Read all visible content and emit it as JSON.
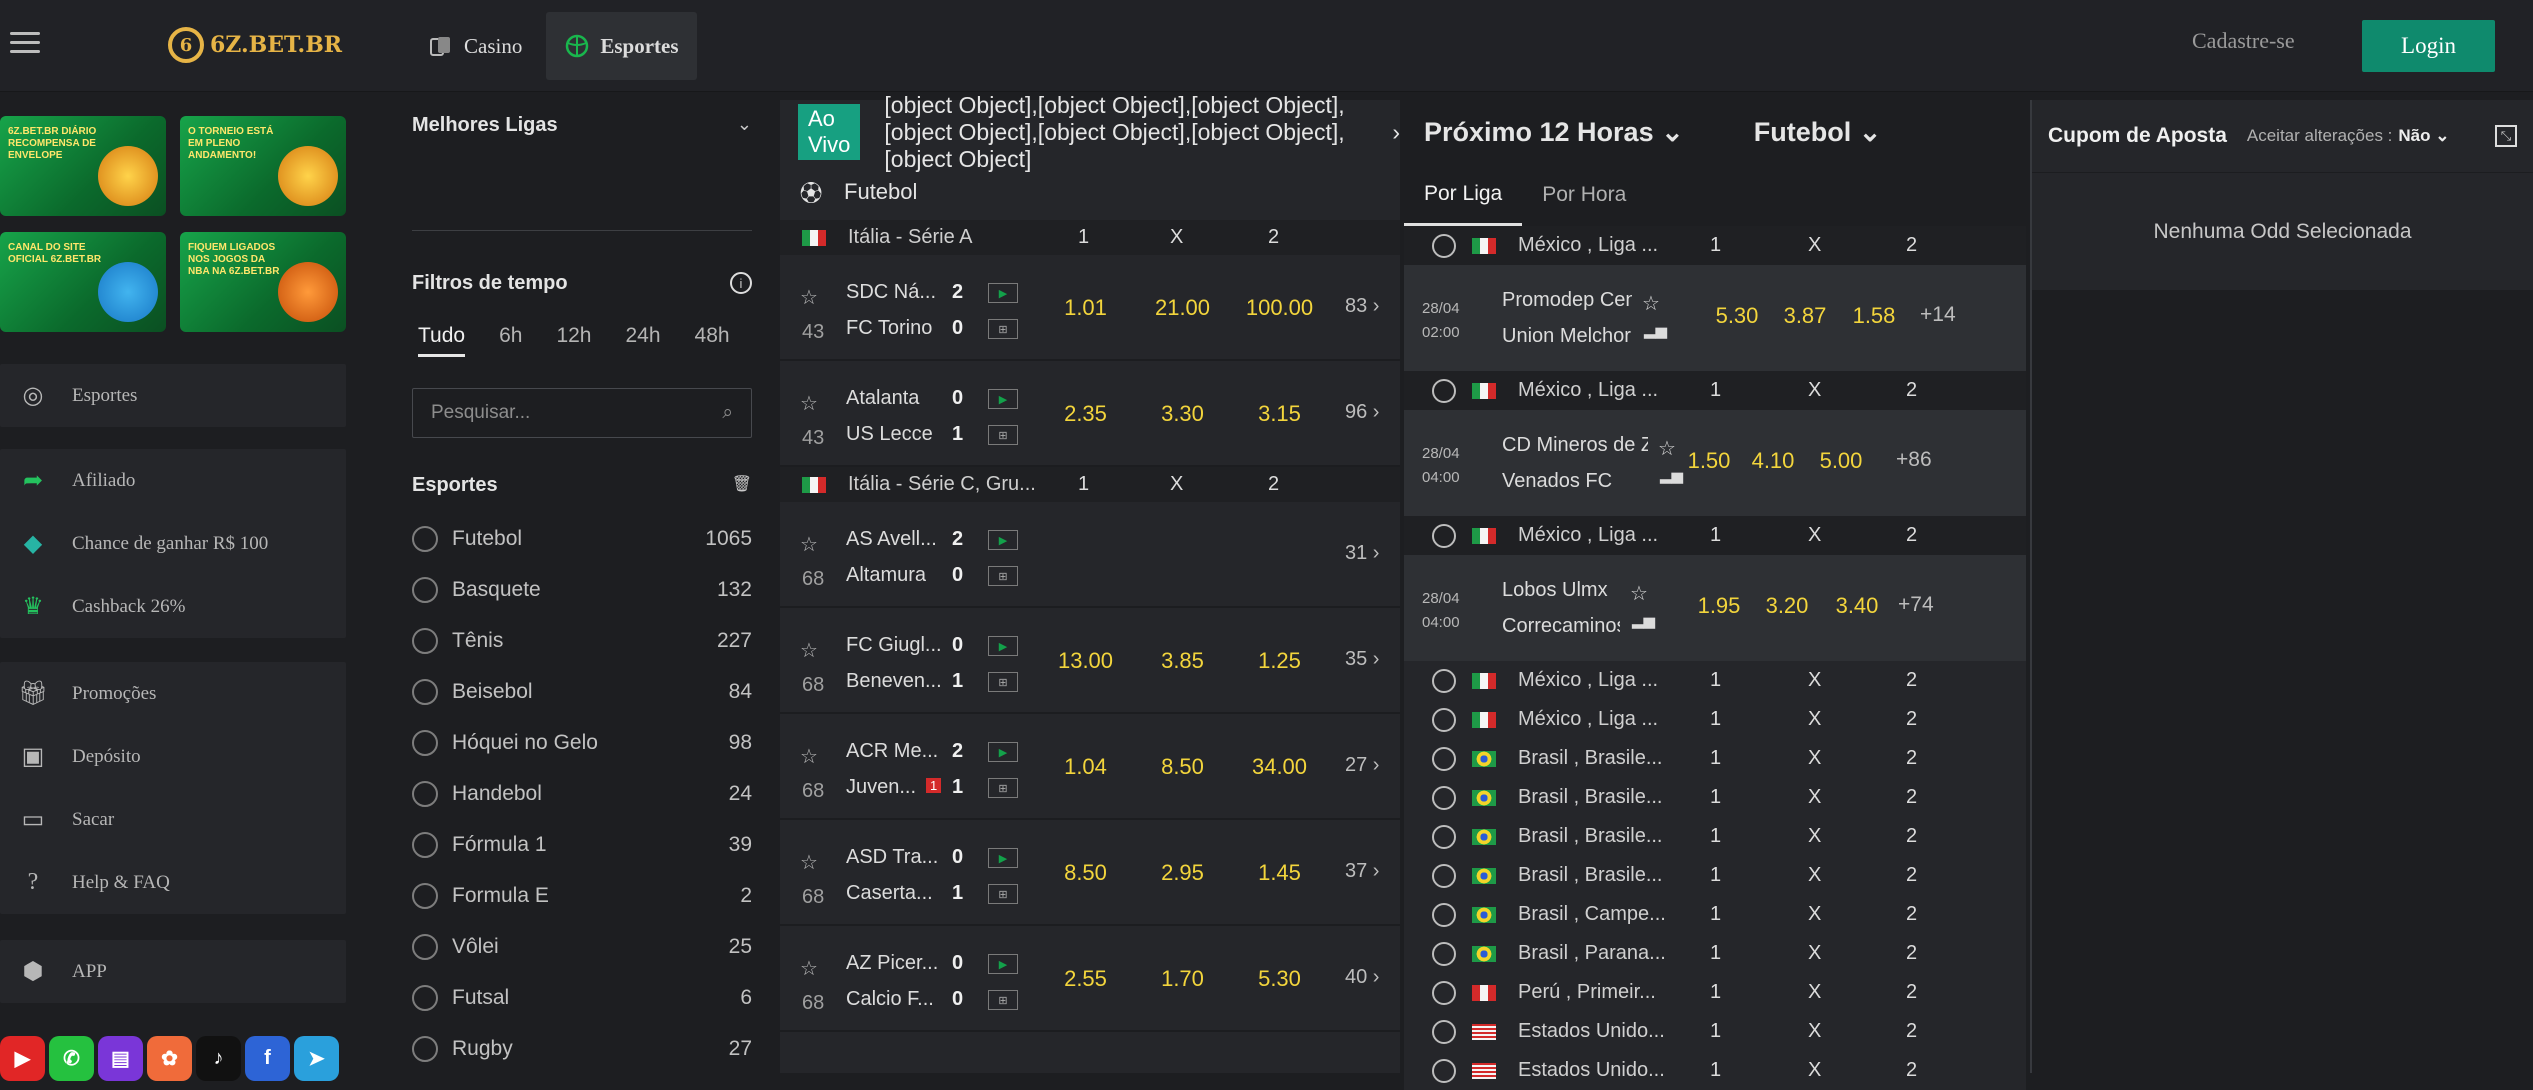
{
  "brand": {
    "logo": "6Z.BET.BR"
  },
  "topnav": {
    "casino": "Casino",
    "sports": "Esportes",
    "register": "Cadastre-se",
    "login": "Login"
  },
  "banners": [
    {
      "text": "6Z.BET.BR DIÁRIO RECOMPENSA DE ENVELOPE"
    },
    {
      "text": "O TORNEIO ESTÁ EM PLENO ANDAMENTO!"
    },
    {
      "text": "CANAL DO SITE OFICIAL 6Z.BET.BR"
    },
    {
      "text": "FIQUEM LIGADOS NOS JOGOS DA NBA NA 6Z.BET.BR"
    }
  ],
  "sidebar": {
    "esportes": "Esportes",
    "afiliado": "Afiliado",
    "chance": "Chance de ganhar R$ 100",
    "cashback": "Cashback 26%",
    "promocoes": "Promoções",
    "deposito": "Depósito",
    "sacar": "Sacar",
    "help": "Help & FAQ",
    "app": "APP"
  },
  "filters": {
    "best_leagues": "Melhores Ligas",
    "time_filter": "Filtros de tempo",
    "times": [
      "Tudo",
      "6h",
      "12h",
      "24h",
      "48h"
    ],
    "search_placeholder": "Pesquisar...",
    "sports_title": "Esportes",
    "sports": [
      {
        "name": "Futebol",
        "count": "1065"
      },
      {
        "name": "Basquete",
        "count": "132"
      },
      {
        "name": "Tênis",
        "count": "227"
      },
      {
        "name": "Beisebol",
        "count": "84"
      },
      {
        "name": "Hóquei no Gelo",
        "count": "98"
      },
      {
        "name": "Handebol",
        "count": "24"
      },
      {
        "name": "Fórmula 1",
        "count": "39"
      },
      {
        "name": "Formula E",
        "count": "2"
      },
      {
        "name": "Vôlei",
        "count": "25"
      },
      {
        "name": "Futsal",
        "count": "6"
      },
      {
        "name": "Rugby",
        "count": "27"
      }
    ]
  },
  "live": {
    "badge": "Ao Vivo",
    "events": [
      {
        "home": "SDC Ná...",
        "away": "FC Torino",
        "sh": "2",
        "sa": "0",
        "min": "43",
        "o1": "1.01",
        "ox": "21.00",
        "o2": "100.00",
        "more": "83 ›"
      },
      {
        "home": "Atalanta",
        "away": "US Lecce",
        "sh": "0",
        "sa": "1",
        "min": "43",
        "o1": "2.35",
        "ox": "3.30",
        "o2": "3.15",
        "more": "96 ›"
      },
      {
        "home": "AS Avell...",
        "away": "Altamura",
        "sh": "2",
        "sa": "0",
        "min": "68",
        "o1": "",
        "ox": "",
        "o2": "",
        "more": "31 ›"
      },
      {
        "home": "FC Giugl...",
        "away": "Beneven...",
        "sh": "0",
        "sa": "1",
        "min": "68",
        "o1": "13.00",
        "ox": "3.85",
        "o2": "1.25",
        "more": "35 ›"
      },
      {
        "home": "ACR Me...",
        "away": "Juven...",
        "sh": "2",
        "sa": "1",
        "min": "68",
        "o1": "1.04",
        "ox": "8.50",
        "o2": "34.00",
        "more": "27 ›",
        "card": "1"
      },
      {
        "home": "ASD Tra...",
        "away": "Caserta...",
        "sh": "0",
        "sa": "1",
        "min": "68",
        "o1": "8.50",
        "ox": "2.95",
        "o2": "1.45",
        "more": "37 ›"
      },
      {
        "home": "AZ Picer...",
        "away": "Calcio F...",
        "sh": "0",
        "sa": "0",
        "min": "68",
        "o1": "2.55",
        "ox": "1.70",
        "o2": "5.30",
        "more": "40 ›"
      }
    ],
    "sport": "Futebol",
    "leagues": [
      {
        "name": "Itália - Série A",
        "c1": "1",
        "cx": "X",
        "c2": "2"
      },
      {
        "name": "Itália - Série C, Gru...",
        "c1": "1",
        "cx": "X",
        "c2": "2"
      }
    ]
  },
  "next": {
    "title": "Próximo 12 Horas",
    "sport": "Futebol",
    "tab_league": "Por Liga",
    "tab_hour": "Por Hora",
    "mx": "México ,  Liga ...",
    "events": [
      {
        "date": "28/04",
        "time": "02:00",
        "home": "Promodep Centr...",
        "away": "Union Melchor O...",
        "o1": "5.30",
        "ox": "3.87",
        "o2": "1.58",
        "more": "+14"
      },
      {
        "date": "28/04",
        "time": "04:00",
        "home": "CD Mineros de Z...",
        "away": "Venados FC",
        "o1": "1.50",
        "ox": "4.10",
        "o2": "5.00",
        "more": "+86"
      },
      {
        "date": "28/04",
        "time": "04:00",
        "home": "Lobos Ulmx",
        "away": "Correcaminos ...",
        "o1": "1.95",
        "ox": "3.20",
        "o2": "3.40",
        "more": "+74"
      }
    ],
    "rows": [
      {
        "name": "México ,  Liga ...",
        "flag": "mx"
      },
      {
        "name": "México ,  Liga ...",
        "flag": "mx"
      },
      {
        "name": "Brasil ,  Brasile...",
        "flag": "br"
      },
      {
        "name": "Brasil ,  Brasile...",
        "flag": "br"
      },
      {
        "name": "Brasil ,  Brasile...",
        "flag": "br"
      },
      {
        "name": "Brasil ,  Brasile...",
        "flag": "br"
      },
      {
        "name": "Brasil ,  Campe...",
        "flag": "br"
      },
      {
        "name": "Brasil ,  Parana...",
        "flag": "br"
      },
      {
        "name": "Perú ,  Primeir...",
        "flag": "pe"
      },
      {
        "name": "Estados Unido...",
        "flag": "us"
      },
      {
        "name": "Estados Unido...",
        "flag": "us"
      }
    ],
    "c1": "1",
    "cx": "X",
    "c2": "2"
  },
  "coupon": {
    "title": "Cupom de Aposta",
    "accept": "Aceitar alterações :",
    "accept_val": "Não",
    "empty": "Nenhuma Odd Selecionada"
  }
}
